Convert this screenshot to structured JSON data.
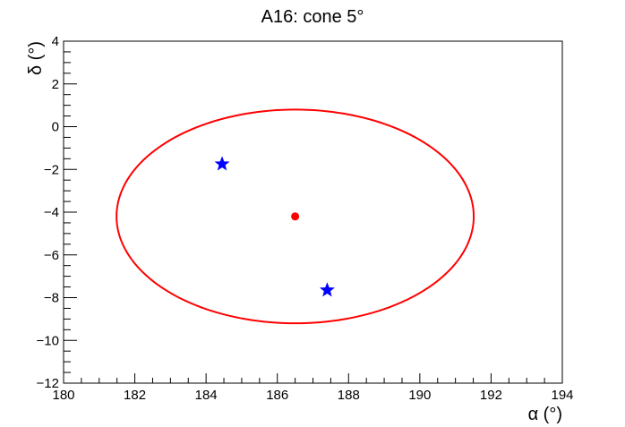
{
  "chart_data": {
    "type": "scatter",
    "title": "A16: cone 5°",
    "xlabel": "α (°)",
    "ylabel": "δ (°)",
    "xlim": [
      180,
      194
    ],
    "ylim": [
      -12,
      4
    ],
    "x_ticks": [
      180,
      182,
      184,
      186,
      188,
      190,
      192,
      194
    ],
    "y_ticks": [
      -12,
      -10,
      -8,
      -6,
      -4,
      -2,
      0,
      2,
      4
    ],
    "grid": false,
    "center": {
      "x": 186.5,
      "y": -4.2,
      "color": "#ff0000",
      "marker": "circle"
    },
    "cone": {
      "center_x": 186.5,
      "center_y": -4.2,
      "radius_deg": 5,
      "color": "#ff0000"
    },
    "points": [
      {
        "x": 184.45,
        "y": -1.75,
        "color": "#0000ff",
        "marker": "star"
      },
      {
        "x": 187.4,
        "y": -7.65,
        "color": "#0000ff",
        "marker": "star"
      }
    ]
  }
}
